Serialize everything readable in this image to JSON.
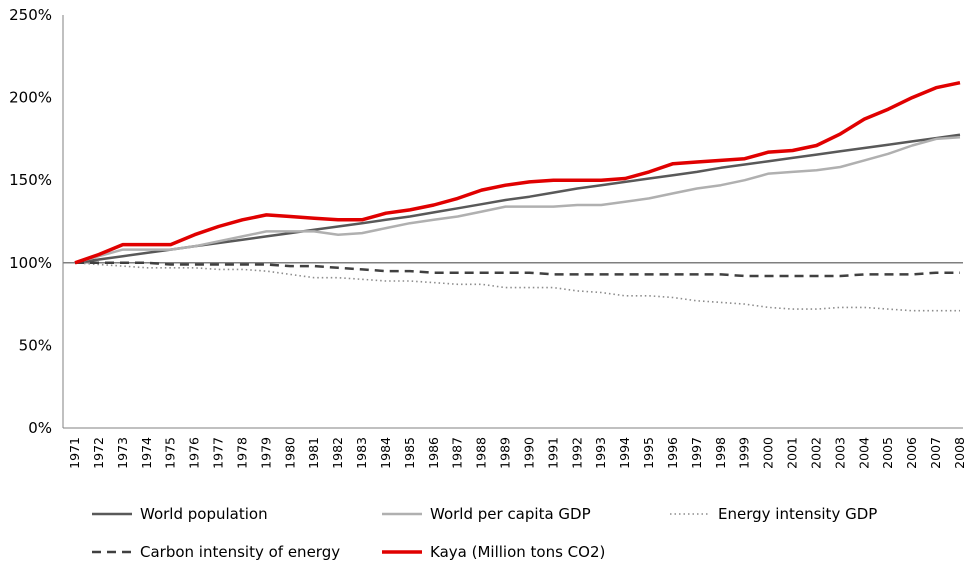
{
  "chart_data": {
    "type": "line",
    "title": "",
    "xlabel": "",
    "ylabel": "",
    "ylim": [
      0,
      250
    ],
    "yticks": [
      0,
      50,
      100,
      150,
      200,
      250
    ],
    "ytick_labels": [
      "0%",
      "50%",
      "100%",
      "150%",
      "200%",
      "250%"
    ],
    "reference_line": 100,
    "grid": false,
    "legend_position": "bottom",
    "x": [
      "1971",
      "1972",
      "1973",
      "1974",
      "1975",
      "1976",
      "1977",
      "1978",
      "1979",
      "1980",
      "1981",
      "1982",
      "1983",
      "1984",
      "1985",
      "1986",
      "1987",
      "1988",
      "1989",
      "1990",
      "1991",
      "1992",
      "1993",
      "1994",
      "1995",
      "1996",
      "1997",
      "1998",
      "1999",
      "2000",
      "2001",
      "2002",
      "2003",
      "2004",
      "2005",
      "2006",
      "2007",
      "2008"
    ],
    "series": [
      {
        "name": "World population",
        "color": "#595959",
        "style": "solid",
        "values": [
          100,
          102,
          104,
          106,
          108,
          110,
          112,
          114,
          116,
          118,
          120,
          122,
          124,
          126,
          128,
          130.5,
          133,
          135.5,
          138,
          140,
          142.5,
          145,
          147,
          149,
          151,
          153,
          155,
          157.5,
          159.5,
          161.5,
          163.5,
          165.5,
          167.5,
          169.5,
          171.5,
          173.5,
          175.5,
          177.5
        ]
      },
      {
        "name": "World per capita GDP",
        "color": "#b0b0b0",
        "style": "solid",
        "values": [
          100,
          104,
          108,
          108,
          108,
          110,
          113,
          116,
          119,
          119,
          119,
          117,
          118,
          121,
          124,
          126,
          128,
          131,
          134,
          134,
          134,
          135,
          135,
          137,
          139,
          142,
          145,
          147,
          150,
          154,
          155,
          156,
          158,
          162,
          166,
          171,
          175,
          176
        ]
      },
      {
        "name": "Energy intensity GDP",
        "color": "#8c8c8c",
        "style": "dotted",
        "values": [
          100,
          99,
          98,
          97,
          97,
          97,
          96,
          96,
          95,
          93,
          91,
          91,
          90,
          89,
          89,
          88,
          87,
          87,
          85,
          85,
          85,
          83,
          82,
          80,
          80,
          79,
          77,
          76,
          75,
          73,
          72,
          72,
          73,
          73,
          72,
          71,
          71,
          71
        ]
      },
      {
        "name": "Carbon intensity of energy",
        "color": "#404040",
        "style": "dashed",
        "values": [
          100,
          100,
          100,
          100,
          99,
          99,
          99,
          99,
          99,
          98,
          98,
          97,
          96,
          95,
          95,
          94,
          94,
          94,
          94,
          94,
          93,
          93,
          93,
          93,
          93,
          93,
          93,
          93,
          92,
          92,
          92,
          92,
          92,
          93,
          93,
          93,
          94,
          94
        ]
      },
      {
        "name": "Kaya (Million tons CO2)",
        "color": "#e00000",
        "style": "solid",
        "values": [
          100,
          105,
          111,
          111,
          111,
          117,
          122,
          126,
          129,
          128,
          127,
          126,
          126,
          130,
          132,
          135,
          139,
          144,
          147,
          149,
          150,
          150,
          150,
          151,
          155,
          160,
          161,
          162,
          163,
          167,
          168,
          171,
          178,
          187,
          193,
          200,
          206,
          209
        ]
      }
    ]
  }
}
